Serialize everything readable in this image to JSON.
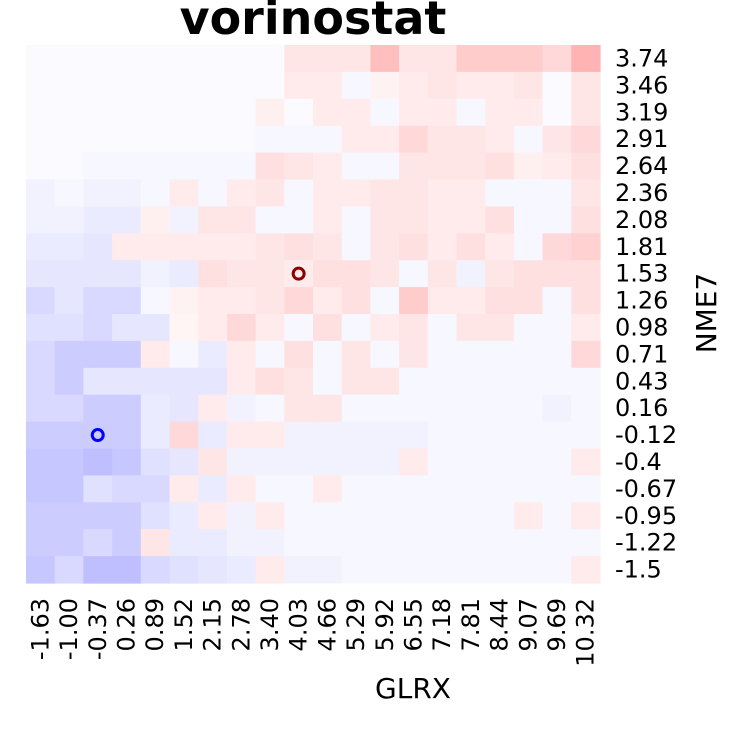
{
  "chart_data": {
    "type": "heatmap",
    "title": "vorinostat",
    "xlabel": "GLRX",
    "ylabel": "NME7",
    "x_ticks": [
      "-1.63",
      "-1.00",
      "-0.37",
      "0.26",
      "0.89",
      "1.52",
      "2.15",
      "2.78",
      "3.40",
      "4.03",
      "4.66",
      "5.29",
      "5.92",
      "6.55",
      "7.18",
      "7.81",
      "8.44",
      "9.07",
      "9.69",
      "10.32"
    ],
    "y_ticks": [
      "3.74",
      "3.46",
      "3.19",
      "2.91",
      "2.64",
      "2.36",
      "2.08",
      "1.81",
      "1.53",
      "1.26",
      "0.98",
      "0.71",
      "0.43",
      "0.16",
      "-0.12",
      "-0.4",
      "-0.67",
      "-0.95",
      "-1.22",
      "-1.5"
    ],
    "color_scale": {
      "negative": "#0000ff",
      "neutral": "#ffffff",
      "positive": "#ff0000"
    },
    "values": [
      [
        -0.02,
        -0.02,
        -0.02,
        -0.02,
        -0.02,
        -0.02,
        -0.02,
        -0.02,
        -0.02,
        0.1,
        0.1,
        0.1,
        0.25,
        0.1,
        0.1,
        0.2,
        0.2,
        0.2,
        0.15,
        0.3
      ],
      [
        -0.02,
        -0.02,
        -0.02,
        -0.02,
        -0.02,
        -0.02,
        -0.02,
        -0.02,
        -0.02,
        0.08,
        0.08,
        -0.03,
        0.05,
        0.08,
        0.1,
        0.08,
        0.08,
        0.1,
        -0.02,
        0.1
      ],
      [
        -0.02,
        -0.02,
        -0.02,
        -0.02,
        -0.02,
        -0.02,
        -0.02,
        -0.02,
        0.06,
        -0.02,
        0.08,
        0.08,
        -0.03,
        0.08,
        0.08,
        -0.03,
        0.08,
        0.08,
        -0.02,
        0.1
      ],
      [
        -0.02,
        -0.02,
        -0.02,
        -0.02,
        -0.02,
        -0.02,
        -0.02,
        -0.02,
        -0.03,
        -0.03,
        -0.03,
        0.08,
        0.08,
        0.15,
        0.1,
        0.1,
        0.08,
        -0.03,
        0.1,
        0.15
      ],
      [
        -0.02,
        -0.02,
        -0.03,
        -0.03,
        -0.03,
        -0.03,
        -0.03,
        -0.03,
        0.12,
        0.1,
        0.08,
        -0.03,
        -0.03,
        0.1,
        0.1,
        0.1,
        0.12,
        0.06,
        0.08,
        0.12
      ],
      [
        -0.05,
        -0.03,
        -0.05,
        -0.05,
        -0.03,
        0.08,
        -0.03,
        0.08,
        0.1,
        -0.03,
        0.08,
        0.08,
        0.1,
        0.1,
        0.08,
        0.08,
        -0.03,
        -0.03,
        -0.03,
        0.1
      ],
      [
        -0.05,
        -0.05,
        -0.08,
        -0.08,
        0.06,
        -0.05,
        0.1,
        0.1,
        -0.03,
        -0.03,
        0.08,
        -0.03,
        0.1,
        0.1,
        0.08,
        0.08,
        0.12,
        -0.03,
        -0.03,
        0.12
      ],
      [
        -0.08,
        -0.08,
        -0.1,
        0.08,
        0.08,
        0.08,
        0.08,
        0.08,
        0.1,
        0.12,
        0.1,
        -0.03,
        0.1,
        0.12,
        0.08,
        0.12,
        0.08,
        -0.03,
        0.15,
        0.18
      ],
      [
        -0.1,
        -0.1,
        -0.1,
        -0.1,
        -0.05,
        -0.08,
        0.12,
        0.1,
        0.1,
        0.08,
        0.12,
        0.12,
        0.1,
        -0.03,
        0.1,
        -0.05,
        0.1,
        0.12,
        0.12,
        0.12
      ],
      [
        -0.15,
        -0.1,
        -0.15,
        -0.15,
        -0.03,
        0.05,
        0.08,
        0.08,
        0.1,
        0.15,
        0.08,
        0.12,
        -0.03,
        0.2,
        0.08,
        0.08,
        0.12,
        0.12,
        -0.03,
        0.12
      ],
      [
        -0.12,
        -0.12,
        -0.15,
        -0.1,
        -0.1,
        0.04,
        0.08,
        0.15,
        0.08,
        -0.03,
        0.12,
        -0.03,
        0.08,
        0.1,
        -0.03,
        0.1,
        0.1,
        -0.03,
        -0.03,
        0.08
      ],
      [
        -0.15,
        -0.2,
        -0.2,
        -0.2,
        0.08,
        -0.03,
        -0.08,
        0.08,
        -0.03,
        0.12,
        -0.03,
        0.1,
        -0.03,
        0.1,
        -0.03,
        -0.03,
        -0.03,
        -0.03,
        -0.03,
        0.15
      ],
      [
        -0.15,
        -0.2,
        -0.1,
        -0.1,
        -0.1,
        -0.1,
        -0.1,
        0.08,
        0.12,
        0.1,
        -0.03,
        0.1,
        0.1,
        -0.03,
        -0.03,
        -0.03,
        -0.03,
        -0.03,
        -0.03,
        -0.03
      ],
      [
        -0.15,
        -0.15,
        -0.2,
        -0.2,
        -0.08,
        -0.1,
        0.08,
        -0.05,
        -0.03,
        0.1,
        0.1,
        -0.03,
        -0.03,
        -0.03,
        -0.03,
        -0.03,
        -0.03,
        -0.03,
        -0.05,
        -0.03
      ],
      [
        -0.2,
        -0.2,
        -0.2,
        -0.2,
        -0.08,
        0.15,
        -0.08,
        0.08,
        0.08,
        -0.05,
        -0.05,
        -0.05,
        -0.05,
        -0.05,
        -0.03,
        -0.03,
        -0.03,
        -0.03,
        -0.03,
        -0.03
      ],
      [
        -0.22,
        -0.22,
        -0.25,
        -0.22,
        -0.12,
        -0.1,
        0.1,
        -0.05,
        -0.05,
        -0.05,
        -0.05,
        -0.05,
        -0.05,
        0.08,
        -0.03,
        -0.03,
        -0.03,
        -0.03,
        -0.03,
        0.08
      ],
      [
        -0.22,
        -0.22,
        -0.12,
        -0.15,
        -0.15,
        0.08,
        -0.08,
        0.08,
        -0.03,
        -0.03,
        0.08,
        -0.03,
        -0.03,
        -0.03,
        -0.03,
        -0.03,
        -0.03,
        -0.03,
        -0.03,
        -0.03
      ],
      [
        -0.2,
        -0.2,
        -0.2,
        -0.2,
        -0.12,
        -0.08,
        0.08,
        -0.05,
        0.08,
        -0.03,
        -0.03,
        -0.03,
        -0.03,
        -0.03,
        -0.03,
        -0.03,
        -0.03,
        0.08,
        -0.03,
        0.08
      ],
      [
        -0.2,
        -0.2,
        -0.15,
        -0.2,
        0.1,
        -0.08,
        -0.08,
        -0.05,
        -0.05,
        -0.03,
        -0.03,
        -0.03,
        -0.03,
        -0.03,
        -0.03,
        -0.03,
        -0.03,
        -0.03,
        -0.03,
        -0.03
      ],
      [
        -0.22,
        -0.15,
        -0.25,
        -0.25,
        -0.15,
        -0.12,
        -0.1,
        -0.08,
        0.08,
        -0.05,
        -0.05,
        -0.03,
        -0.03,
        -0.03,
        -0.03,
        -0.03,
        -0.03,
        -0.03,
        -0.03,
        0.08
      ]
    ],
    "markers": [
      {
        "x": "4.03",
        "y": "1.53",
        "color": "#8b0000",
        "shape": "open-circle"
      },
      {
        "x": "-0.37",
        "y": "-0.12",
        "color": "#0000ff",
        "shape": "open-circle"
      }
    ]
  }
}
